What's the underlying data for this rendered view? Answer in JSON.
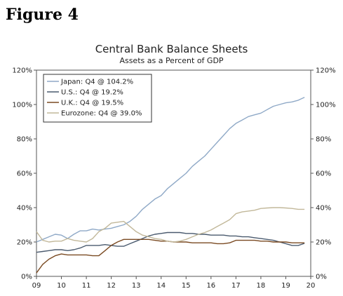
{
  "figure_label": "Figure 4",
  "chart_data": {
    "type": "line",
    "title": "Central Bank Balance Sheets",
    "subtitle": "Assets as a Percent of GDP",
    "ylim": [
      0,
      120
    ],
    "y_ticks": [
      "0%",
      "20%",
      "40%",
      "60%",
      "80%",
      "100%",
      "120%"
    ],
    "y_tick_values": [
      0,
      20,
      40,
      60,
      80,
      100,
      120
    ],
    "xlim": [
      2009,
      2020
    ],
    "x_ticks": [
      "09",
      "10",
      "11",
      "12",
      "13",
      "14",
      "15",
      "16",
      "17",
      "18",
      "19",
      "20"
    ],
    "x_tick_values": [
      2009,
      2010,
      2011,
      2012,
      2013,
      2014,
      2015,
      2016,
      2017,
      2018,
      2019,
      2020
    ],
    "legend_placement": "top-left",
    "grid": false,
    "series": [
      {
        "name": "Japan: Q4 @ 104.2%",
        "color": "#8fa9c7",
        "points": [
          [
            2009.0,
            20
          ],
          [
            2009.25,
            21.5
          ],
          [
            2009.5,
            23
          ],
          [
            2009.75,
            24.5
          ],
          [
            2010.0,
            24
          ],
          [
            2010.25,
            22
          ],
          [
            2010.5,
            24.5
          ],
          [
            2010.75,
            26.5
          ],
          [
            2011.0,
            26.5
          ],
          [
            2011.25,
            27.5
          ],
          [
            2011.5,
            27
          ],
          [
            2011.75,
            27.5
          ],
          [
            2012.0,
            28
          ],
          [
            2012.25,
            29
          ],
          [
            2012.5,
            30
          ],
          [
            2012.75,
            32
          ],
          [
            2013.0,
            35
          ],
          [
            2013.25,
            39
          ],
          [
            2013.5,
            42
          ],
          [
            2013.75,
            45
          ],
          [
            2014.0,
            47
          ],
          [
            2014.25,
            51
          ],
          [
            2014.5,
            54
          ],
          [
            2014.75,
            57
          ],
          [
            2015.0,
            60
          ],
          [
            2015.25,
            64
          ],
          [
            2015.5,
            67
          ],
          [
            2015.75,
            70
          ],
          [
            2016.0,
            74
          ],
          [
            2016.25,
            78
          ],
          [
            2016.5,
            82
          ],
          [
            2016.75,
            86
          ],
          [
            2017.0,
            89
          ],
          [
            2017.25,
            91
          ],
          [
            2017.5,
            93
          ],
          [
            2017.75,
            94
          ],
          [
            2018.0,
            95
          ],
          [
            2018.25,
            97
          ],
          [
            2018.5,
            99
          ],
          [
            2018.75,
            100
          ],
          [
            2019.0,
            101
          ],
          [
            2019.25,
            101.5
          ],
          [
            2019.5,
            102.5
          ],
          [
            2019.75,
            104.2
          ]
        ]
      },
      {
        "name": "U.S.: Q4 @ 19.2%",
        "color": "#4a5a6e",
        "points": [
          [
            2009.0,
            14
          ],
          [
            2009.25,
            14.5
          ],
          [
            2009.5,
            15
          ],
          [
            2009.75,
            15.5
          ],
          [
            2010.0,
            15.5
          ],
          [
            2010.25,
            15
          ],
          [
            2010.5,
            15.5
          ],
          [
            2010.75,
            16.5
          ],
          [
            2011.0,
            18
          ],
          [
            2011.25,
            18
          ],
          [
            2011.5,
            18
          ],
          [
            2011.75,
            18.5
          ],
          [
            2012.0,
            18
          ],
          [
            2012.25,
            17.5
          ],
          [
            2012.5,
            17.5
          ],
          [
            2012.75,
            19
          ],
          [
            2013.0,
            20.5
          ],
          [
            2013.25,
            22
          ],
          [
            2013.5,
            23.5
          ],
          [
            2013.75,
            24.5
          ],
          [
            2014.0,
            25
          ],
          [
            2014.25,
            25.5
          ],
          [
            2014.5,
            25.5
          ],
          [
            2014.75,
            25.5
          ],
          [
            2015.0,
            25
          ],
          [
            2015.25,
            25
          ],
          [
            2015.5,
            24.5
          ],
          [
            2015.75,
            24.5
          ],
          [
            2016.0,
            24
          ],
          [
            2016.25,
            24
          ],
          [
            2016.5,
            24
          ],
          [
            2016.75,
            23.5
          ],
          [
            2017.0,
            23.5
          ],
          [
            2017.25,
            23
          ],
          [
            2017.5,
            23
          ],
          [
            2017.75,
            22.5
          ],
          [
            2018.0,
            22
          ],
          [
            2018.25,
            21.5
          ],
          [
            2018.5,
            21
          ],
          [
            2018.75,
            20
          ],
          [
            2019.0,
            19
          ],
          [
            2019.25,
            18
          ],
          [
            2019.5,
            18
          ],
          [
            2019.75,
            19.2
          ]
        ]
      },
      {
        "name": "U.K.: Q4 @ 19.5%",
        "color": "#7a4a22",
        "points": [
          [
            2009.0,
            2
          ],
          [
            2009.25,
            7
          ],
          [
            2009.5,
            10
          ],
          [
            2009.75,
            12
          ],
          [
            2010.0,
            13
          ],
          [
            2010.25,
            12.5
          ],
          [
            2010.5,
            12.5
          ],
          [
            2010.75,
            12.5
          ],
          [
            2011.0,
            12.5
          ],
          [
            2011.25,
            12
          ],
          [
            2011.5,
            12
          ],
          [
            2011.75,
            15
          ],
          [
            2012.0,
            18
          ],
          [
            2012.25,
            20
          ],
          [
            2012.5,
            21.5
          ],
          [
            2012.75,
            21.5
          ],
          [
            2013.0,
            21.5
          ],
          [
            2013.25,
            21.5
          ],
          [
            2013.5,
            21.5
          ],
          [
            2013.75,
            21
          ],
          [
            2014.0,
            20.5
          ],
          [
            2014.25,
            20.5
          ],
          [
            2014.5,
            20
          ],
          [
            2014.75,
            20
          ],
          [
            2015.0,
            20
          ],
          [
            2015.25,
            19.5
          ],
          [
            2015.5,
            19.5
          ],
          [
            2015.75,
            19.5
          ],
          [
            2016.0,
            19.5
          ],
          [
            2016.25,
            19
          ],
          [
            2016.5,
            19
          ],
          [
            2016.75,
            19.5
          ],
          [
            2017.0,
            21
          ],
          [
            2017.25,
            21
          ],
          [
            2017.5,
            21
          ],
          [
            2017.75,
            21
          ],
          [
            2018.0,
            20.5
          ],
          [
            2018.25,
            20.5
          ],
          [
            2018.5,
            20
          ],
          [
            2018.75,
            20
          ],
          [
            2019.0,
            20
          ],
          [
            2019.25,
            19.5
          ],
          [
            2019.5,
            19.5
          ],
          [
            2019.75,
            19.5
          ]
        ]
      },
      {
        "name": "Eurozone: Q4 @ 39.0%",
        "color": "#c2b89a",
        "points": [
          [
            2009.0,
            26
          ],
          [
            2009.25,
            21
          ],
          [
            2009.5,
            20
          ],
          [
            2009.75,
            20.5
          ],
          [
            2010.0,
            20.5
          ],
          [
            2010.25,
            22
          ],
          [
            2010.5,
            21
          ],
          [
            2010.75,
            20.5
          ],
          [
            2011.0,
            20
          ],
          [
            2011.25,
            22
          ],
          [
            2011.5,
            26
          ],
          [
            2011.75,
            28
          ],
          [
            2012.0,
            31
          ],
          [
            2012.25,
            31.5
          ],
          [
            2012.5,
            32
          ],
          [
            2012.75,
            29
          ],
          [
            2013.0,
            26
          ],
          [
            2013.25,
            24
          ],
          [
            2013.5,
            23
          ],
          [
            2013.75,
            22
          ],
          [
            2014.0,
            21.5
          ],
          [
            2014.25,
            20.5
          ],
          [
            2014.5,
            20
          ],
          [
            2014.75,
            20.5
          ],
          [
            2015.0,
            21.5
          ],
          [
            2015.25,
            23
          ],
          [
            2015.5,
            24.5
          ],
          [
            2015.75,
            25.5
          ],
          [
            2016.0,
            27
          ],
          [
            2016.25,
            29
          ],
          [
            2016.5,
            31
          ],
          [
            2016.75,
            33
          ],
          [
            2017.0,
            36.5
          ],
          [
            2017.25,
            37.5
          ],
          [
            2017.5,
            38
          ],
          [
            2017.75,
            38.5
          ],
          [
            2018.0,
            39.5
          ],
          [
            2018.25,
            39.8
          ],
          [
            2018.5,
            40
          ],
          [
            2018.75,
            40
          ],
          [
            2019.0,
            39.8
          ],
          [
            2019.25,
            39.5
          ],
          [
            2019.5,
            39
          ],
          [
            2019.75,
            39
          ]
        ]
      }
    ]
  }
}
